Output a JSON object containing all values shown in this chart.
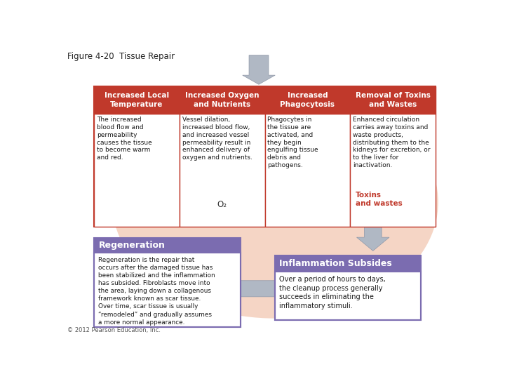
{
  "title": "Figure 4-20  Tissue Repair",
  "bg_outer": "#ffffff",
  "bg_peach": "#f5d5c5",
  "header_color": "#c0392b",
  "header_text_color": "#ffffff",
  "cell_bg": "#ffffff",
  "border_color": "#c0392b",
  "purple_header": "#7b6cb0",
  "purple_border": "#7b6cb0",
  "cell_body_color": "#ffffff",
  "arrow_fill": "#b0b8c4",
  "arrow_edge": "#9098a8",
  "text_dark": "#1a1a1a",
  "toxins_color": "#c0392b",
  "copyright_color": "#555555",
  "col_headers": [
    "Increased Local\nTemperature",
    "Increased Oxygen\nand Nutrients",
    "Increased\nPhagocytosis",
    "Removal of Toxins\nand Wastes"
  ],
  "col_bodies": [
    "The increased\nblood flow and\npermeability\ncauses the tissue\nto become warm\nand red.",
    "Vessel dilation,\nincreased blood flow,\nand increased vessel\npermeability result in\nenhanced delivery of\noxygen and nutrients.",
    "Phagocytes in\nthe tissue are\nactivated, and\nthey begin\nengulfing tissue\ndebris and\npathogens.",
    "Enhanced circulation\ncarries away toxins and\nwaste products,\ndistributing them to the\nkidneys for excretion, or\nto the liver for\ninactivation."
  ],
  "regen_title": "Regeneration",
  "regen_body": "Regeneration is the repair that\noccurs after the damaged tissue has\nbeen stabilized and the inflammation\nhas subsided. Fibroblasts move into\nthe area, laying down a collagenous\nframework known as scar tissue.\nOver time, scar tissue is usually\n“remodeled” and gradually assumes\na more normal appearance.",
  "inflam_title": "Inflammation Subsides",
  "inflam_body": "Over a period of hours to days,\nthe cleanup process generally\nsucceeds in eliminating the\ninflammatory stimuli.",
  "toxins_label": "Toxins\nand wastes",
  "o2_label": "O₂",
  "copyright": "© 2012 Pearson Education, Inc."
}
